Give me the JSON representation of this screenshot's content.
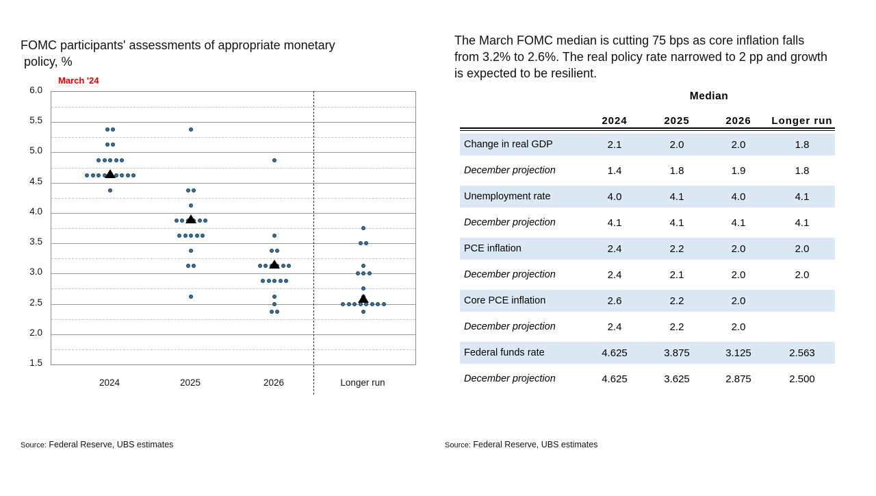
{
  "left": {
    "title_line1": "FOMC participants' assessments of appropriate monetary",
    "title_line2": "policy, %",
    "annotation": "March '24",
    "source_label": "Source:",
    "source_text": "Federal Reserve, UBS estimates"
  },
  "right": {
    "summary": "The March FOMC median is cutting 75 bps as core inflation falls from 3.2% to 2.6%. The real policy rate narrowed to 2 pp and growth is expected to be resilient.",
    "source_label": "Source:",
    "source_text": "Federal Reserve, UBS estimates"
  },
  "chart_data": {
    "type": "scatter",
    "title": "FOMC participants' assessments of appropriate monetary policy, %",
    "annotation": "March '24",
    "xlabel": "",
    "ylabel": "%",
    "ylim": [
      1.5,
      6.0
    ],
    "ytick_major_step": 0.5,
    "ytick_minor_step": 0.25,
    "grid": "major solid, minor dashed",
    "yticks": [
      "6.0",
      "5.5",
      "5.0",
      "4.5",
      "4.0",
      "3.5",
      "3.0",
      "2.5",
      "2.0",
      "1.5"
    ],
    "categories": [
      "2024",
      "2025",
      "2026",
      "Longer run"
    ],
    "separator_before": "Longer run",
    "columns": [
      {
        "label": "2024",
        "median": 4.625,
        "dots": [
          {
            "rate": 5.375,
            "count": 2
          },
          {
            "rate": 5.125,
            "count": 2
          },
          {
            "rate": 4.875,
            "count": 5
          },
          {
            "rate": 4.625,
            "count": 9
          },
          {
            "rate": 4.375,
            "count": 1
          }
        ]
      },
      {
        "label": "2025",
        "median": 3.875,
        "dots": [
          {
            "rate": 5.375,
            "count": 1
          },
          {
            "rate": 4.375,
            "count": 2
          },
          {
            "rate": 4.125,
            "count": 1
          },
          {
            "rate": 3.875,
            "count": 6
          },
          {
            "rate": 3.625,
            "count": 5
          },
          {
            "rate": 3.375,
            "count": 1
          },
          {
            "rate": 3.125,
            "count": 2
          },
          {
            "rate": 2.625,
            "count": 1
          }
        ]
      },
      {
        "label": "2026",
        "median": 3.125,
        "dots": [
          {
            "rate": 4.875,
            "count": 1
          },
          {
            "rate": 3.625,
            "count": 1
          },
          {
            "rate": 3.375,
            "count": 2
          },
          {
            "rate": 3.125,
            "count": 6
          },
          {
            "rate": 2.875,
            "count": 5
          },
          {
            "rate": 2.625,
            "count": 1
          },
          {
            "rate": 2.5,
            "count": 1
          },
          {
            "rate": 2.375,
            "count": 2
          }
        ]
      },
      {
        "label": "Longer run",
        "median": 2.563,
        "dots": [
          {
            "rate": 3.75,
            "count": 1
          },
          {
            "rate": 3.5,
            "count": 2
          },
          {
            "rate": 3.125,
            "count": 1
          },
          {
            "rate": 3.0,
            "count": 3
          },
          {
            "rate": 2.75,
            "count": 1
          },
          {
            "rate": 2.625,
            "count": 1
          },
          {
            "rate": 2.5,
            "count": 8
          },
          {
            "rate": 2.375,
            "count": 1
          }
        ]
      }
    ],
    "colors": {
      "dot": "#35719f",
      "dot_border": "#1a3e5c",
      "median_marker": "#000000",
      "annotation_red": "#e60100",
      "shaded_row": "#dce9f5"
    }
  },
  "table": {
    "super_header": "Median",
    "columns": [
      "",
      "2024",
      "2025",
      "2026",
      "Longer run"
    ],
    "rows": [
      {
        "label": "Change in real GDP",
        "italic": false,
        "shaded": true,
        "values": [
          "2.1",
          "2.0",
          "2.0",
          "1.8"
        ]
      },
      {
        "label": "December projection",
        "italic": true,
        "shaded": false,
        "values": [
          "1.4",
          "1.8",
          "1.9",
          "1.8"
        ]
      },
      {
        "label": "Unemployment rate",
        "italic": false,
        "shaded": true,
        "values": [
          "4.0",
          "4.1",
          "4.0",
          "4.1"
        ]
      },
      {
        "label": "December projection",
        "italic": true,
        "shaded": false,
        "values": [
          "4.1",
          "4.1",
          "4.1",
          "4.1"
        ]
      },
      {
        "label": "PCE inflation",
        "italic": false,
        "shaded": true,
        "values": [
          "2.4",
          "2.2",
          "2.0",
          "2.0"
        ]
      },
      {
        "label": "December projection",
        "italic": true,
        "shaded": false,
        "values": [
          "2.4",
          "2.1",
          "2.0",
          "2.0"
        ]
      },
      {
        "label": "Core PCE inflation",
        "italic": false,
        "shaded": true,
        "values": [
          "2.6",
          "2.2",
          "2.0",
          ""
        ]
      },
      {
        "label": "December projection",
        "italic": true,
        "shaded": false,
        "values": [
          "2.4",
          "2.2",
          "2.0",
          ""
        ]
      },
      {
        "label": "Federal funds rate",
        "italic": false,
        "shaded": true,
        "values": [
          "4.625",
          "3.875",
          "3.125",
          "2.563"
        ]
      },
      {
        "label": "December projection",
        "italic": true,
        "shaded": false,
        "values": [
          "4.625",
          "3.625",
          "2.875",
          "2.500"
        ]
      }
    ]
  }
}
